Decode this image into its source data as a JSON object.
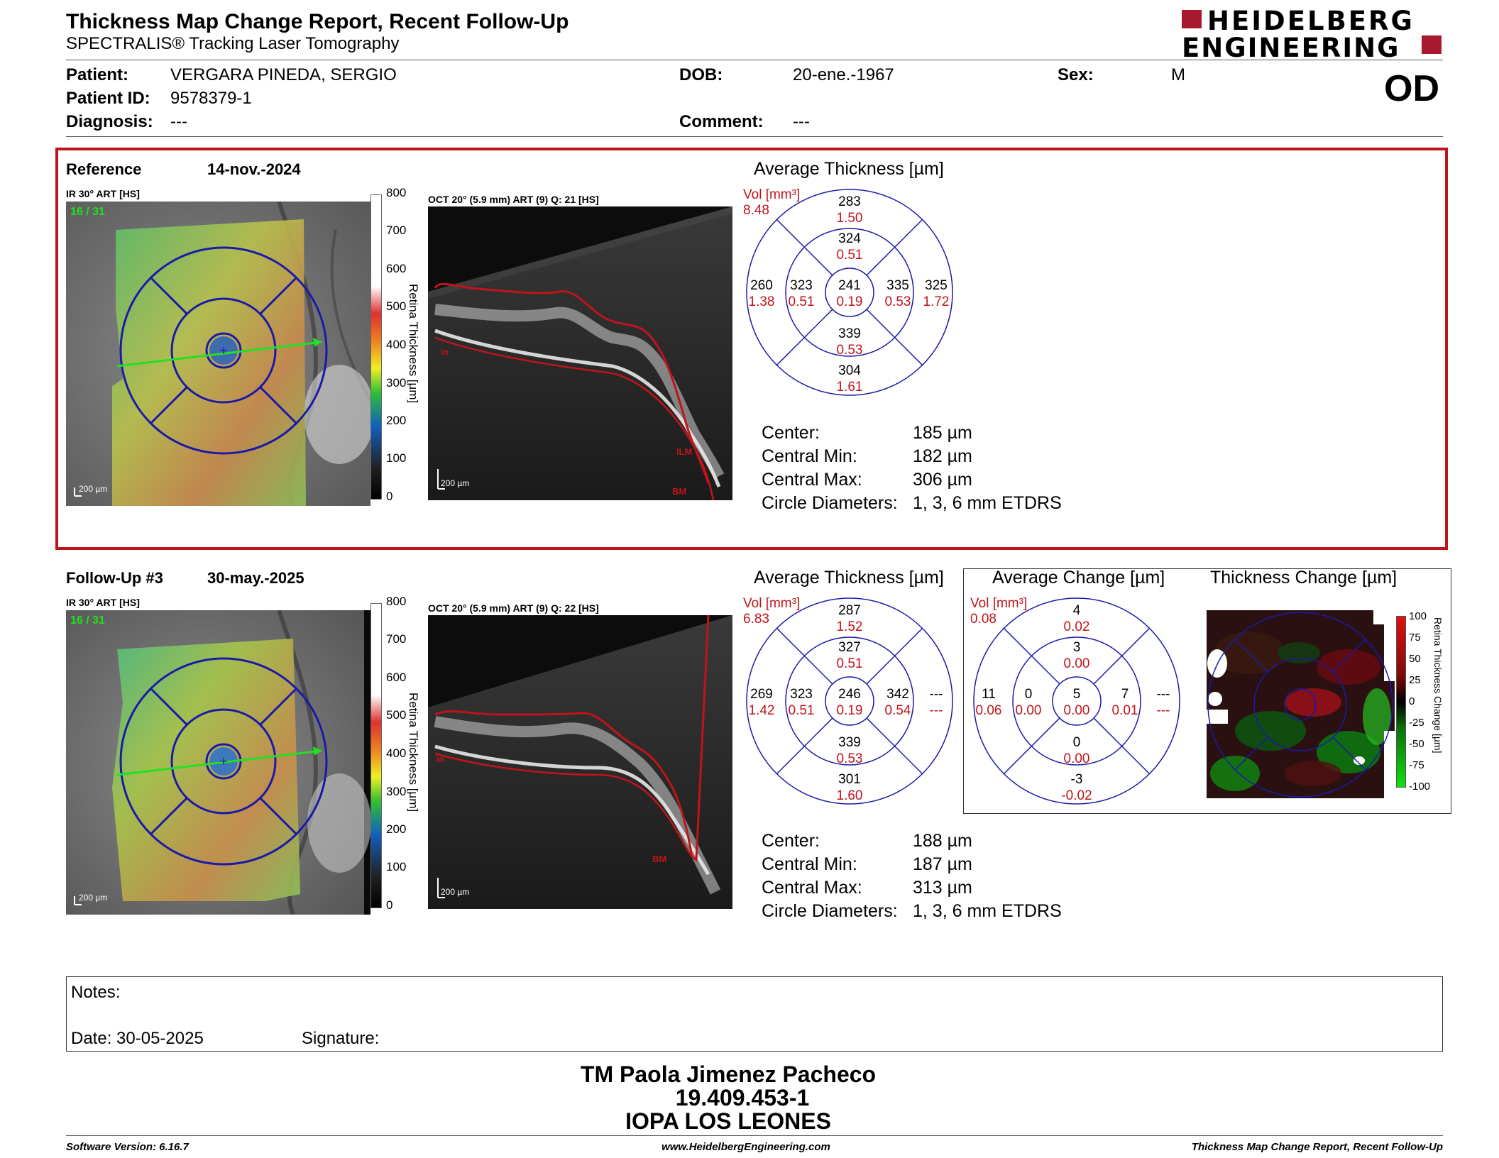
{
  "header": {
    "title": "Thickness Map Change Report, Recent Follow-Up",
    "subtitle": "SPECTRALIS® Tracking Laser Tomography",
    "logo_line1": "HEIDELBERG",
    "logo_line2": "ENGINEERING",
    "eye": "OD"
  },
  "patient": {
    "patient_label": "Patient:",
    "patient_value": "VERGARA PINEDA, SERGIO",
    "id_label": "Patient ID:",
    "id_value": "9578379-1",
    "diagnosis_label": "Diagnosis:",
    "diagnosis_value": "---",
    "dob_label": "DOB:",
    "dob_value": "20-ene.-1967",
    "comment_label": "Comment:",
    "comment_value": "---",
    "sex_label": "Sex:",
    "sex_value": "M"
  },
  "reference": {
    "label": "Reference",
    "date": "14-nov.-2024",
    "ir_caption": "IR 30° ART [HS]",
    "ir_counter": "16 / 31",
    "ir_scalebar": "200 µm",
    "oct_caption": "OCT 20° (5.9 mm) ART (9) Q: 21 [HS]",
    "oct_scalebar": "200 µm",
    "oct_ilm": "ILM",
    "oct_bm": "BM",
    "oct_in": "in",
    "avg_title": "Average Thickness [µm]",
    "vol_label": "Vol [mm³]",
    "vol_total": "8.48",
    "etdrs": {
      "sup_outer": [
        "283",
        "1.50"
      ],
      "sup_inner": [
        "324",
        "0.51"
      ],
      "temp_outer": [
        "260",
        "1.38"
      ],
      "temp_inner": [
        "323",
        "0.51"
      ],
      "center": [
        "241",
        "0.19"
      ],
      "nasal_inner": [
        "335",
        "0.53"
      ],
      "nasal_outer": [
        "325",
        "1.72"
      ],
      "inf_inner": [
        "339",
        "0.53"
      ],
      "inf_outer": [
        "304",
        "1.61"
      ]
    },
    "stats": {
      "center_label": "Center:",
      "center_value": "185 µm",
      "min_label": "Central Min:",
      "min_value": "182 µm",
      "max_label": "Central Max:",
      "max_value": "306 µm",
      "circ_label": "Circle Diameters:",
      "circ_value": "1, 3, 6 mm ETDRS"
    }
  },
  "followup": {
    "label": "Follow-Up #3",
    "date": "30-may.-2025",
    "ir_caption": "IR 30° ART [HS]",
    "ir_counter": "16 / 31",
    "ir_scalebar": "200 µm",
    "oct_caption": "OCT 20° (5.9 mm) ART (9) Q: 22 [HS]",
    "oct_scalebar": "200 µm",
    "oct_bm": "BM",
    "oct_in": "in",
    "avg_title": "Average Thickness [µm]",
    "vol_label": "Vol [mm³]",
    "vol_total": "6.83",
    "etdrs": {
      "sup_outer": [
        "287",
        "1.52"
      ],
      "sup_inner": [
        "327",
        "0.51"
      ],
      "temp_outer": [
        "269",
        "1.42"
      ],
      "temp_inner": [
        "323",
        "0.51"
      ],
      "center": [
        "246",
        "0.19"
      ],
      "nasal_inner": [
        "342",
        "0.54"
      ],
      "nasal_outer": [
        "---",
        "---"
      ],
      "inf_inner": [
        "339",
        "0.53"
      ],
      "inf_outer": [
        "301",
        "1.60"
      ]
    },
    "change_title": "Average Change [µm]",
    "change_vol_label": "Vol [mm³]",
    "change_vol_total": "0.08",
    "change": {
      "sup_outer": [
        "4",
        "0.02"
      ],
      "sup_inner": [
        "3",
        "0.00"
      ],
      "temp_outer": [
        "11",
        "0.06"
      ],
      "temp_inner": [
        "0",
        "0.00"
      ],
      "center": [
        "5",
        "0.00"
      ],
      "nasal_inner": [
        "7",
        "0.01"
      ],
      "nasal_outer": [
        "---",
        "---"
      ],
      "inf_inner": [
        "0",
        "0.00"
      ],
      "inf_outer": [
        "-3",
        "-0.02"
      ]
    },
    "thick_change_title": "Thickness Change [µm]",
    "change_scale_title": "Retina Thickness Change [µm]",
    "change_scale_ticks": [
      "100",
      "75",
      "50",
      "25",
      "0",
      "-25",
      "-50",
      "-75",
      "-100"
    ],
    "stats": {
      "center_label": "Center:",
      "center_value": "188 µm",
      "min_label": "Central Min:",
      "min_value": "187 µm",
      "max_label": "Central Max:",
      "max_value": "313 µm",
      "circ_label": "Circle Diameters:",
      "circ_value": "1, 3, 6 mm ETDRS"
    }
  },
  "scale": {
    "title": "Retina Thickness [µm]",
    "ticks": [
      "800",
      "700",
      "600",
      "500",
      "400",
      "300",
      "200",
      "100",
      "0"
    ]
  },
  "notes": {
    "notes_label": "Notes:",
    "date_label": "Date: 30-05-2025",
    "signature_label": "Signature:"
  },
  "signature": {
    "name": "TM Paola Jimenez Pacheco",
    "id": "19.409.453-1",
    "institution": "IOPA LOS LEONES"
  },
  "footer": {
    "software": "Software Version: 6.16.7",
    "website": "www.HeidelbergEngineering.com",
    "report": "Thickness Map Change Report, Recent Follow-Up"
  },
  "colors": {
    "frame_red": "#c0141c",
    "grid_blue": "#1a1aa8",
    "value_red": "#c0141c",
    "logo_red": "#a6192e"
  }
}
